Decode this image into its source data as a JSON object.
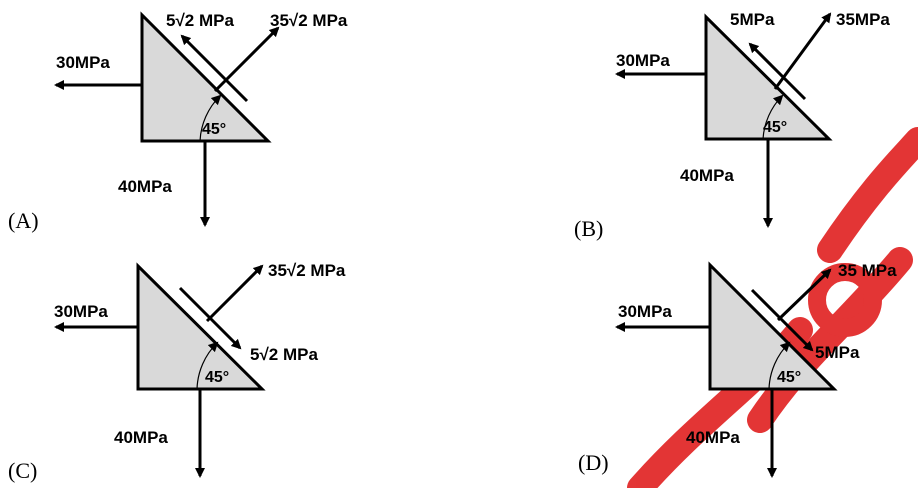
{
  "panels": [
    {
      "option": "(A)",
      "left_stress": "30MPa",
      "bottom_stress": "40MPa",
      "angle": "45°",
      "shear_stress": "5√2 MPa",
      "normal_stress": "35√2 MPa"
    },
    {
      "option": "(B)",
      "left_stress": "30MPa",
      "bottom_stress": "40MPa",
      "angle": "45°",
      "shear_stress": "5MPa",
      "normal_stress": "35MPa"
    },
    {
      "option": "(C)",
      "left_stress": "30MPa",
      "bottom_stress": "40MPa",
      "angle": "45°",
      "shear_stress": "5√2 MPa",
      "normal_stress": "35√2 MPa"
    },
    {
      "option": "(D)",
      "left_stress": "30MPa",
      "bottom_stress": "40MPa",
      "angle": "45°",
      "shear_stress": "5MPa",
      "normal_stress": "35 MPa"
    }
  ],
  "watermark_color": "#e02020"
}
